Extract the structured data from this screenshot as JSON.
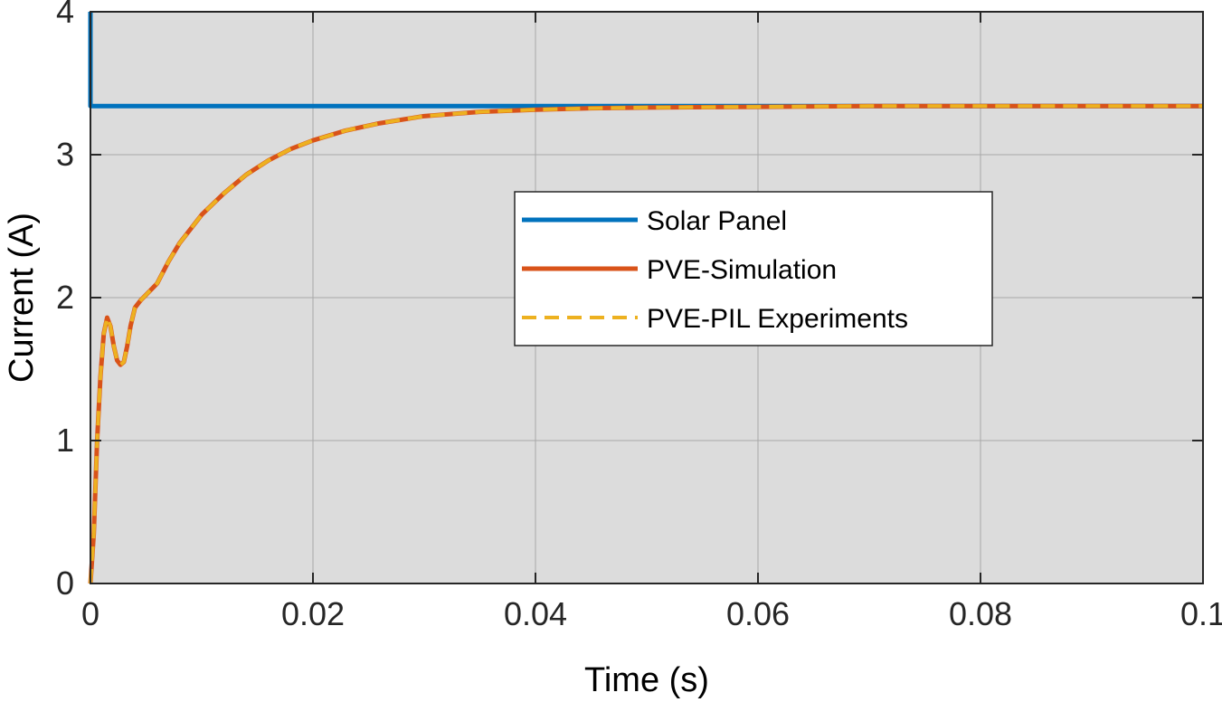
{
  "chart_data": {
    "type": "line",
    "title": "",
    "xlabel": "Time (s)",
    "ylabel": "Current (A)",
    "xlim": [
      0,
      0.1
    ],
    "ylim": [
      0,
      4
    ],
    "grid": true,
    "legend_position": "center-right",
    "x_ticks": [
      0,
      0.02,
      0.04,
      0.06,
      0.08,
      0.1
    ],
    "x_tick_labels": [
      "0",
      "0.02",
      "0.04",
      "0.06",
      "0.08",
      "0.1"
    ],
    "y_ticks": [
      0,
      1,
      2,
      3,
      4
    ],
    "y_tick_labels": [
      "0",
      "1",
      "2",
      "3",
      "4"
    ],
    "series": [
      {
        "name": "Solar Panel",
        "color": "#0072bd",
        "style": "solid",
        "x": [
          0,
          0,
          0.1
        ],
        "y": [
          4,
          3.34,
          3.34
        ]
      },
      {
        "name": "PVE-Simulation",
        "color": "#d95319",
        "style": "solid",
        "x": [
          0,
          0.0003,
          0.0006,
          0.0009,
          0.0012,
          0.0015,
          0.0018,
          0.0021,
          0.0024,
          0.0027,
          0.003,
          0.0033,
          0.0036,
          0.004,
          0.0045,
          0.005,
          0.006,
          0.007,
          0.008,
          0.01,
          0.012,
          0.014,
          0.016,
          0.018,
          0.02,
          0.023,
          0.026,
          0.03,
          0.035,
          0.04,
          0.045,
          0.05,
          0.06,
          0.07,
          0.08,
          0.09,
          0.1
        ],
        "y": [
          0,
          0.35,
          1.0,
          1.45,
          1.75,
          1.86,
          1.8,
          1.66,
          1.56,
          1.53,
          1.55,
          1.66,
          1.8,
          1.93,
          1.98,
          2.02,
          2.1,
          2.25,
          2.38,
          2.58,
          2.73,
          2.86,
          2.96,
          3.04,
          3.1,
          3.17,
          3.22,
          3.27,
          3.3,
          3.315,
          3.325,
          3.33,
          3.335,
          3.34,
          3.34,
          3.34,
          3.34
        ]
      },
      {
        "name": "PVE-PIL Experiments",
        "color": "#edb120",
        "style": "dashed",
        "x": [
          0,
          0.0003,
          0.0006,
          0.0009,
          0.0012,
          0.0015,
          0.0018,
          0.0021,
          0.0024,
          0.0027,
          0.003,
          0.0033,
          0.0036,
          0.004,
          0.0045,
          0.005,
          0.006,
          0.007,
          0.008,
          0.01,
          0.012,
          0.014,
          0.016,
          0.018,
          0.02,
          0.023,
          0.026,
          0.03,
          0.035,
          0.04,
          0.045,
          0.05,
          0.06,
          0.07,
          0.08,
          0.09,
          0.1
        ],
        "y": [
          0,
          0.35,
          1.0,
          1.45,
          1.75,
          1.86,
          1.8,
          1.66,
          1.56,
          1.53,
          1.55,
          1.66,
          1.8,
          1.93,
          1.98,
          2.02,
          2.1,
          2.25,
          2.38,
          2.58,
          2.73,
          2.86,
          2.96,
          3.04,
          3.1,
          3.17,
          3.22,
          3.27,
          3.3,
          3.315,
          3.325,
          3.33,
          3.335,
          3.34,
          3.34,
          3.34,
          3.34
        ]
      }
    ]
  }
}
